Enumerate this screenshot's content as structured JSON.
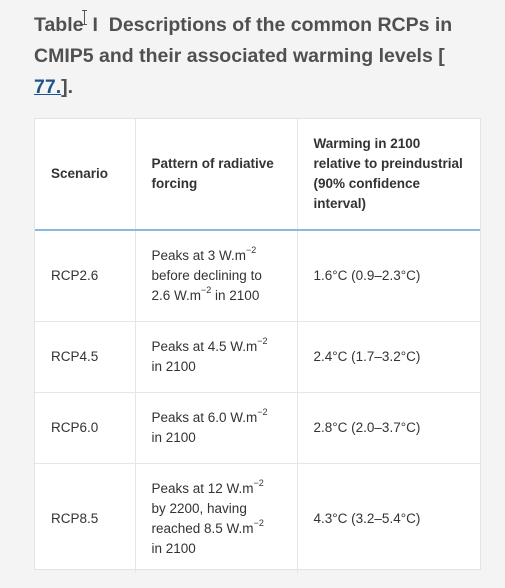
{
  "caption": {
    "prefix": "Table",
    "numeral": "I",
    "text": "Descriptions of the common RCPs in CMIP5 and their associated warming levels [",
    "ref": "77.",
    "suffix": "]."
  },
  "table": {
    "headers": [
      "Scenario",
      "Pattern of radiative forcing",
      "Warming in 2100 relative to preindustrial (90% confidence interval)"
    ],
    "unit_exponent": "−2",
    "rows": [
      {
        "scenario": "RCP2.6",
        "forcing": {
          "p1": "Peaks at 3 W.m",
          "p2": "before declining to 2.6 W.m",
          "p3": " in 2100"
        },
        "warming": "1.6°C (0.9–2.3°C)"
      },
      {
        "scenario": "RCP4.5",
        "forcing": {
          "p1": "Peaks at 4.5 W.m",
          "p2": "in 2100"
        },
        "warming": "2.4°C (1.7–3.2°C)"
      },
      {
        "scenario": "RCP6.0",
        "forcing": {
          "p1": "Peaks at 6.0 W.m",
          "p2": "in 2100"
        },
        "warming": "2.8°C (2.0–3.7°C)"
      },
      {
        "scenario": "RCP8.5",
        "forcing": {
          "p1": "Peaks at 12 W.m",
          "p2": "by 2200, having reached 8.5 W.m",
          "p3": "in 2100"
        },
        "warming": "4.3°C (3.2–5.4°C)"
      }
    ]
  }
}
